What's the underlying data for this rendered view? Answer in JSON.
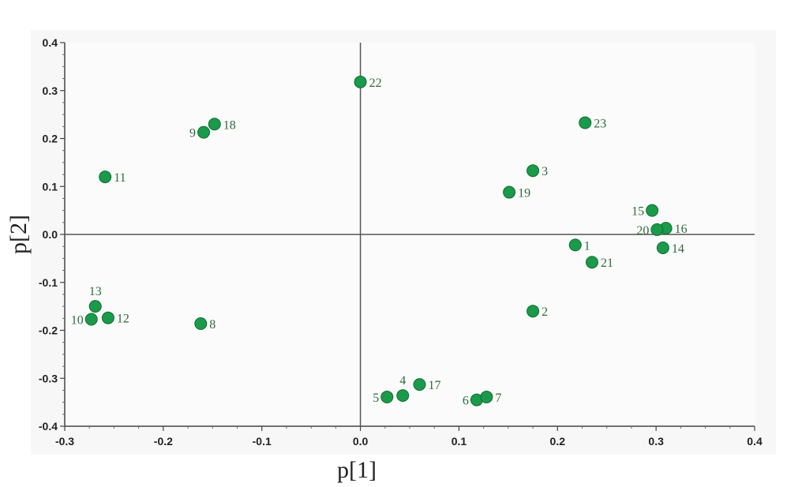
{
  "chart_data": {
    "type": "scatter",
    "title": "",
    "xlabel": "p[1]",
    "ylabel": "p[2]",
    "xlim": [
      -0.3,
      0.4
    ],
    "ylim": [
      -0.4,
      0.4
    ],
    "x_ticks": [
      "-0.3",
      "-0.2",
      "-0.1",
      "0.0",
      "0.1",
      "0.2",
      "0.3",
      "0.4"
    ],
    "y_ticks": [
      "0.4",
      "0.3",
      "0.2",
      "0.1",
      "0.0",
      "-0.1",
      "-0.2",
      "-0.3",
      "-0.4"
    ],
    "grid": false,
    "marker_color": "#1a9a4a",
    "label_color": "#2f6b3a",
    "points": [
      {
        "label": "1",
        "x": 0.218,
        "y": -0.022,
        "pos": "right"
      },
      {
        "label": "2",
        "x": 0.175,
        "y": -0.16,
        "pos": "right"
      },
      {
        "label": "3",
        "x": 0.175,
        "y": 0.133,
        "pos": "right"
      },
      {
        "label": "4",
        "x": 0.043,
        "y": -0.336,
        "pos": "above"
      },
      {
        "label": "5",
        "x": 0.027,
        "y": -0.339,
        "pos": "left"
      },
      {
        "label": "6",
        "x": 0.118,
        "y": -0.345,
        "pos": "left"
      },
      {
        "label": "7",
        "x": 0.128,
        "y": -0.339,
        "pos": "right"
      },
      {
        "label": "8",
        "x": -0.162,
        "y": -0.186,
        "pos": "right"
      },
      {
        "label": "9",
        "x": -0.159,
        "y": 0.213,
        "pos": "left"
      },
      {
        "label": "10",
        "x": -0.273,
        "y": -0.177,
        "pos": "left"
      },
      {
        "label": "11",
        "x": -0.259,
        "y": 0.12,
        "pos": "right"
      },
      {
        "label": "12",
        "x": -0.256,
        "y": -0.174,
        "pos": "right"
      },
      {
        "label": "13",
        "x": -0.269,
        "y": -0.15,
        "pos": "above"
      },
      {
        "label": "14",
        "x": 0.307,
        "y": -0.028,
        "pos": "right"
      },
      {
        "label": "15",
        "x": 0.296,
        "y": 0.05,
        "pos": "left"
      },
      {
        "label": "16",
        "x": 0.31,
        "y": 0.013,
        "pos": "right"
      },
      {
        "label": "17",
        "x": 0.06,
        "y": -0.313,
        "pos": "right"
      },
      {
        "label": "18",
        "x": -0.148,
        "y": 0.23,
        "pos": "right"
      },
      {
        "label": "19",
        "x": 0.151,
        "y": 0.088,
        "pos": "right"
      },
      {
        "label": "20",
        "x": 0.301,
        "y": 0.01,
        "pos": "left"
      },
      {
        "label": "21",
        "x": 0.235,
        "y": -0.058,
        "pos": "right"
      },
      {
        "label": "22",
        "x": 0.0,
        "y": 0.318,
        "pos": "right"
      },
      {
        "label": "23",
        "x": 0.228,
        "y": 0.233,
        "pos": "right"
      }
    ]
  }
}
